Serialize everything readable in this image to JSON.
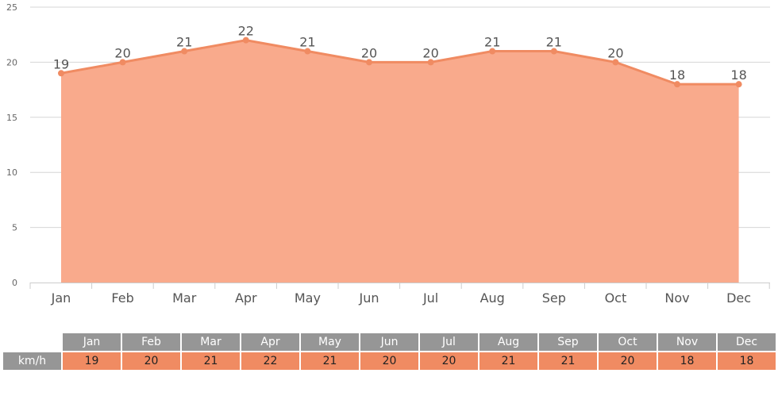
{
  "chart_data": {
    "type": "area",
    "categories": [
      "Jan",
      "Feb",
      "Mar",
      "Apr",
      "May",
      "Jun",
      "Jul",
      "Aug",
      "Sep",
      "Oct",
      "Nov",
      "Dec"
    ],
    "values": [
      19,
      20,
      21,
      22,
      21,
      20,
      20,
      21,
      21,
      20,
      18,
      18
    ],
    "ylim": [
      0,
      25
    ],
    "yticks": [
      0,
      5,
      10,
      15,
      20,
      25
    ],
    "grid": true,
    "fill_color": "#f9aa8c",
    "line_color": "#f08b62"
  },
  "table": {
    "row_label": "km/h",
    "months": [
      "Jan",
      "Feb",
      "Mar",
      "Apr",
      "May",
      "Jun",
      "Jul",
      "Aug",
      "Sep",
      "Oct",
      "Nov",
      "Dec"
    ],
    "values": [
      "19",
      "20",
      "21",
      "22",
      "21",
      "20",
      "20",
      "21",
      "21",
      "20",
      "18",
      "18"
    ]
  }
}
